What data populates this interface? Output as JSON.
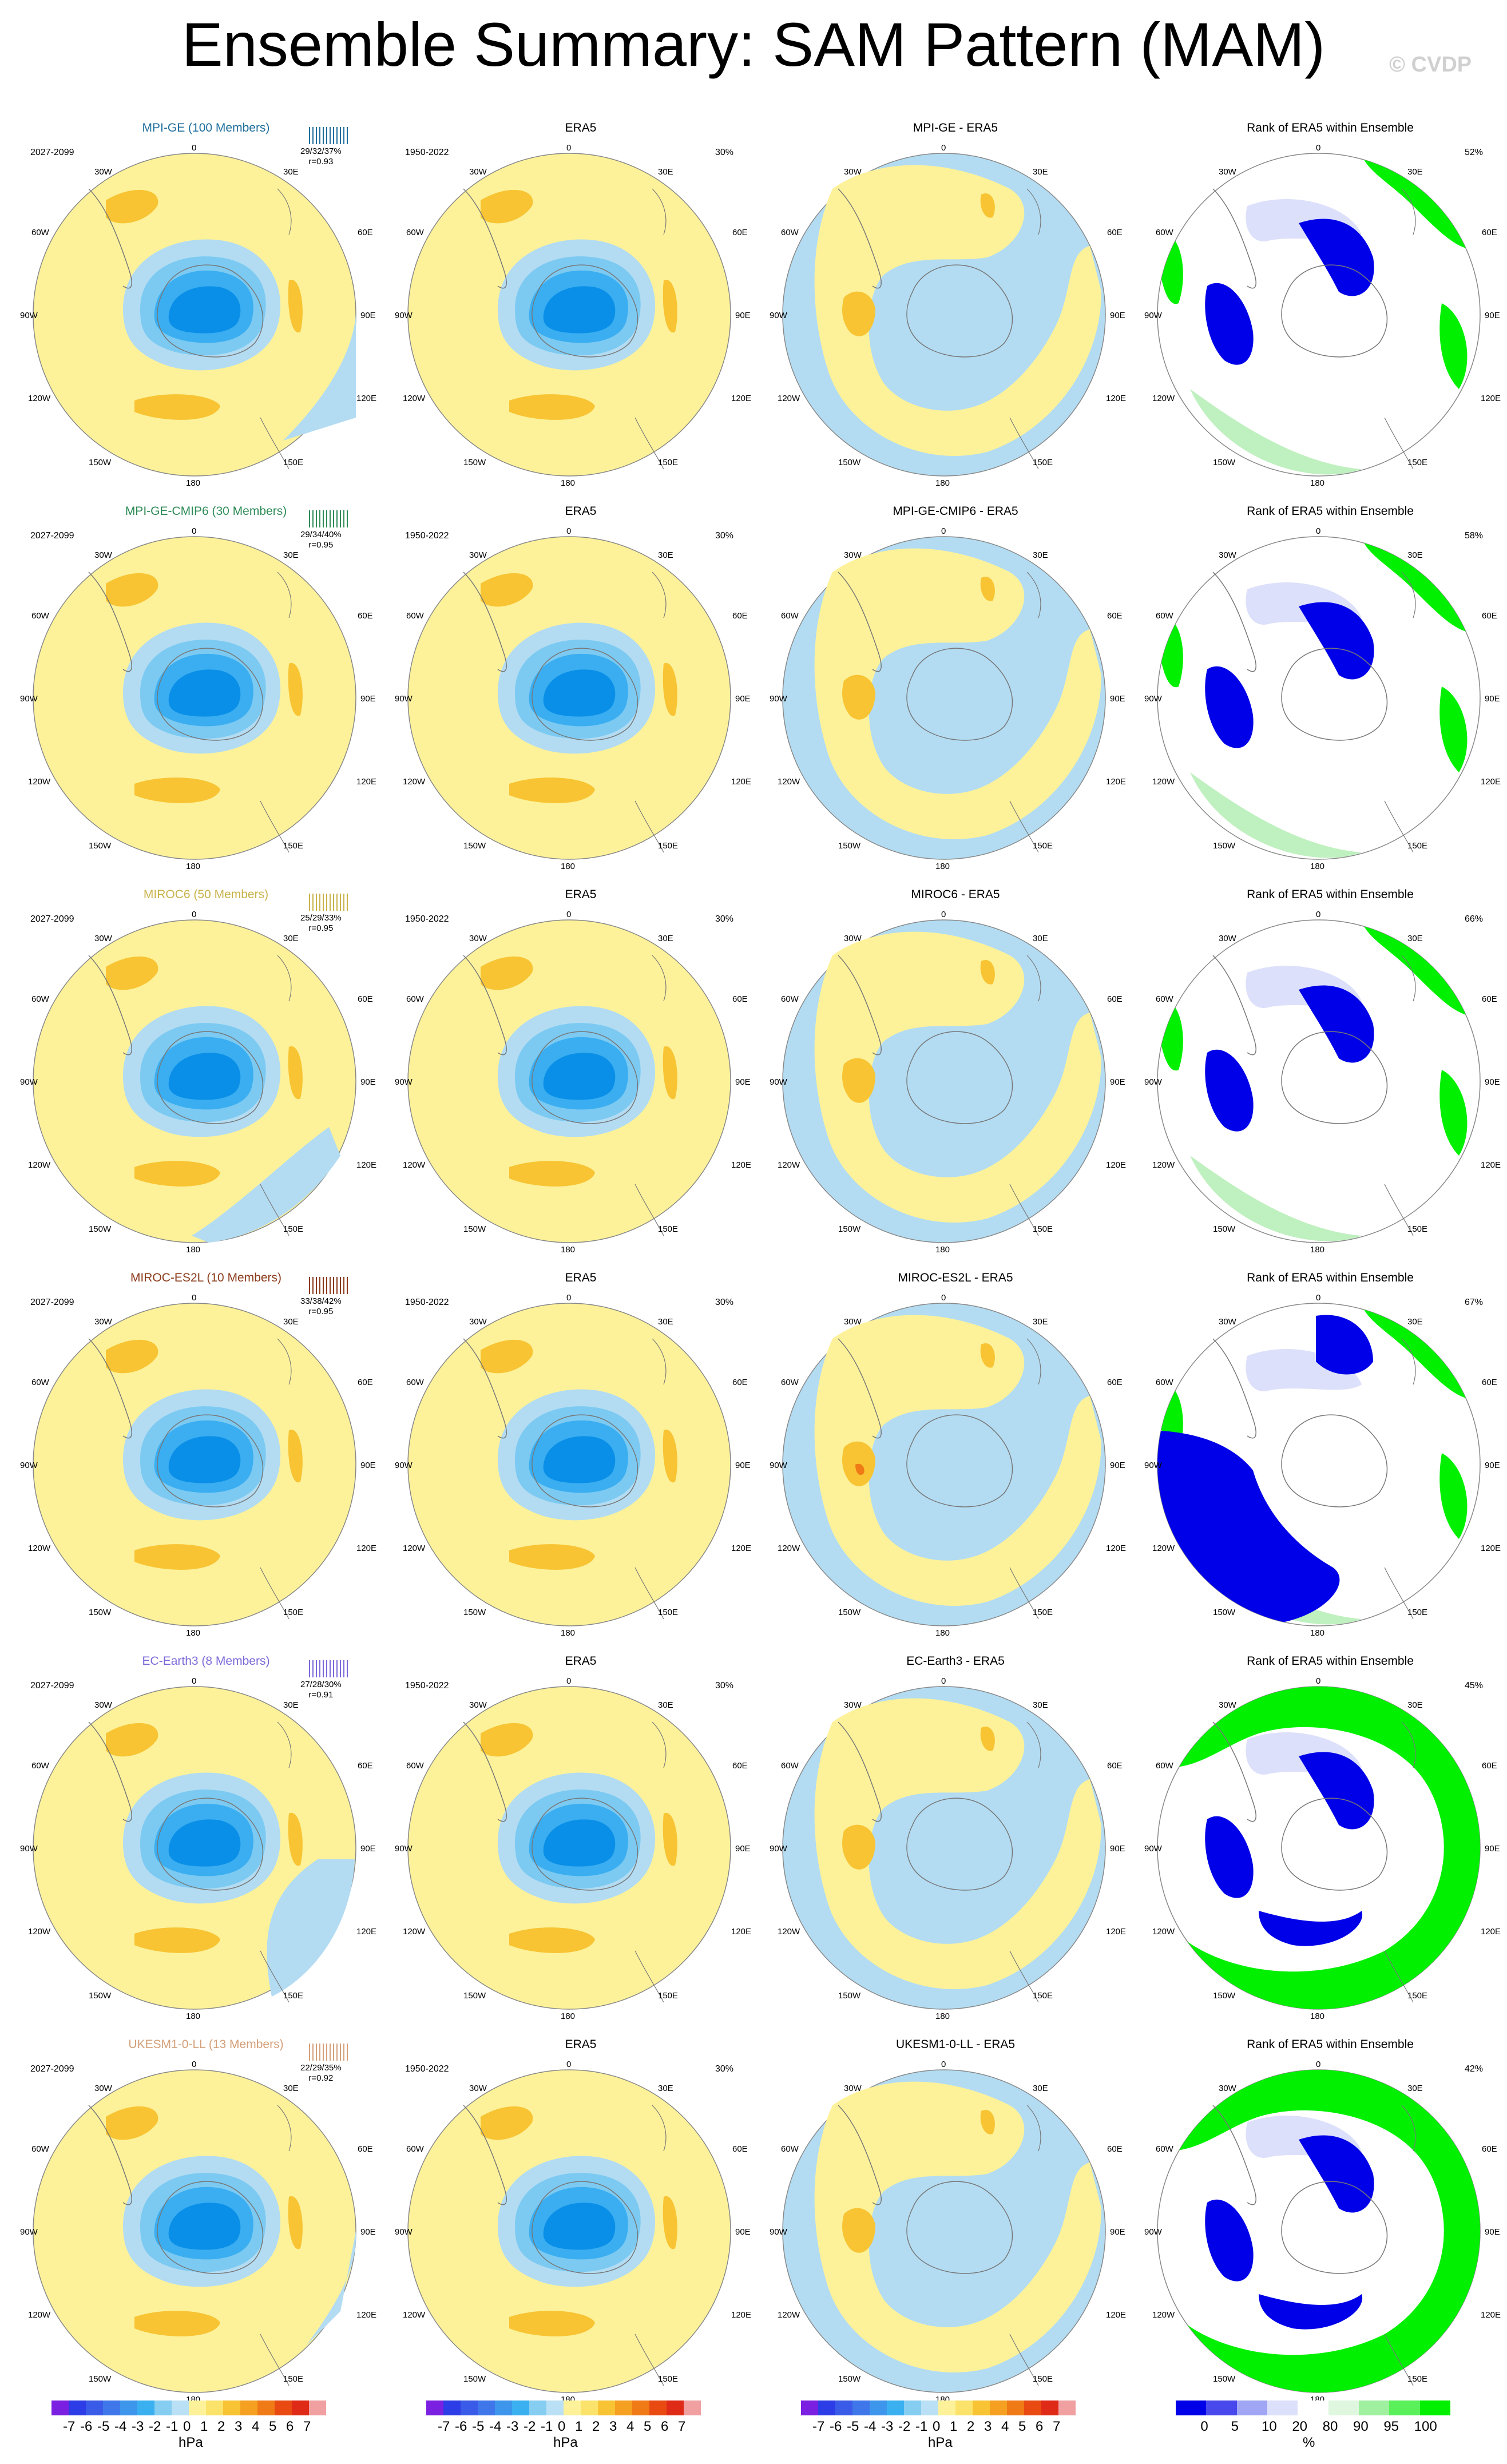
{
  "title": "Ensemble Summary: SAM Pattern (MAM)",
  "watermark": "© CVDP",
  "palette": {
    "yellow": "#fdf29a",
    "orange": "#f8c434",
    "lightblue": "#b3dcf2",
    "blue1": "#7ccaf2",
    "blue2": "#3aaef0",
    "blue3": "#0a8fe8",
    "blue4": "#3a6ee6",
    "rank_white": "#ffffff",
    "rank_lightblue": "#dde0fa",
    "rank_blue": "#0000e8",
    "rank_green": "#00f000",
    "rank_lightgreen": "#bff0bf"
  },
  "map_labels": {
    "lon_top": "0",
    "lon_bottom": "180",
    "w30": "30W",
    "e30": "30E",
    "w60": "60W",
    "e60": "60E",
    "w90": "90W",
    "e90": "90E",
    "w120": "120W",
    "e120": "120E",
    "w150": "150W",
    "e150": "150E"
  },
  "rows": [
    {
      "model": "MPI-GE (100 Members)",
      "color": "#1f6e9b",
      "period": "2027-2099",
      "stats": "29/32/37%",
      "r": "r=0.93",
      "obs_pct": "30%",
      "diff_title": "MPI-GE - ERA5",
      "rank_pct": "52%"
    },
    {
      "model": "MPI-GE-CMIP6 (30 Members)",
      "color": "#2e8b57",
      "period": "2027-2099",
      "stats": "29/34/40%",
      "r": "r=0.95",
      "obs_pct": "30%",
      "diff_title": "MPI-GE-CMIP6 - ERA5",
      "rank_pct": "58%"
    },
    {
      "model": "MIROC6 (50 Members)",
      "color": "#c9b24a",
      "period": "2027-2099",
      "stats": "25/29/33%",
      "r": "r=0.95",
      "obs_pct": "30%",
      "diff_title": "MIROC6 - ERA5",
      "rank_pct": "66%"
    },
    {
      "model": "MIROC-ES2L (10 Members)",
      "color": "#8b3a1a",
      "period": "2027-2099",
      "stats": "33/38/42%",
      "r": "r=0.95",
      "obs_pct": "30%",
      "diff_title": "MIROC-ES2L - ERA5",
      "rank_pct": "67%"
    },
    {
      "model": "EC-Earth3 (8 Members)",
      "color": "#7b68d8",
      "period": "2027-2099",
      "stats": "27/28/30%",
      "r": "r=0.91",
      "obs_pct": "30%",
      "diff_title": "EC-Earth3 - ERA5",
      "rank_pct": "45%"
    },
    {
      "model": "UKESM1-0-LL (13 Members)",
      "color": "#d4a07a",
      "period": "2027-2099",
      "stats": "22/29/35%",
      "r": "r=0.92",
      "obs_pct": "30%",
      "diff_title": "UKESM1-0-LL - ERA5",
      "rank_pct": "42%"
    }
  ],
  "obs": {
    "title": "ERA5",
    "period": "1950-2022"
  },
  "rank_title": "Rank of ERA5 within Ensemble",
  "colorbars": {
    "hpa": {
      "labels": [
        "-7",
        "-6",
        "-5",
        "-4",
        "-3",
        "-2",
        "-1",
        "0",
        "1",
        "2",
        "3",
        "4",
        "5",
        "6",
        "7"
      ],
      "unit": "hPa",
      "colors": [
        "#7b1fe0",
        "#2c3ce6",
        "#3a5ae8",
        "#3f77ea",
        "#3d95ec",
        "#3ab0f0",
        "#86cdf2",
        "#b9e0f4",
        "#fdf29a",
        "#fbe36b",
        "#f8c434",
        "#f5a021",
        "#ef7a16",
        "#e84a12",
        "#e02a18",
        "#f0a0a0"
      ]
    },
    "rank": {
      "labels": [
        "0",
        "5",
        "10",
        "20",
        "80",
        "90",
        "95",
        "100"
      ],
      "unit": "%",
      "colors": [
        "#0000e8",
        "#4848ec",
        "#a0a6f4",
        "#dde0fa",
        "#ffffff",
        "#dff6df",
        "#9ff09f",
        "#5af05a",
        "#00f000"
      ]
    }
  }
}
